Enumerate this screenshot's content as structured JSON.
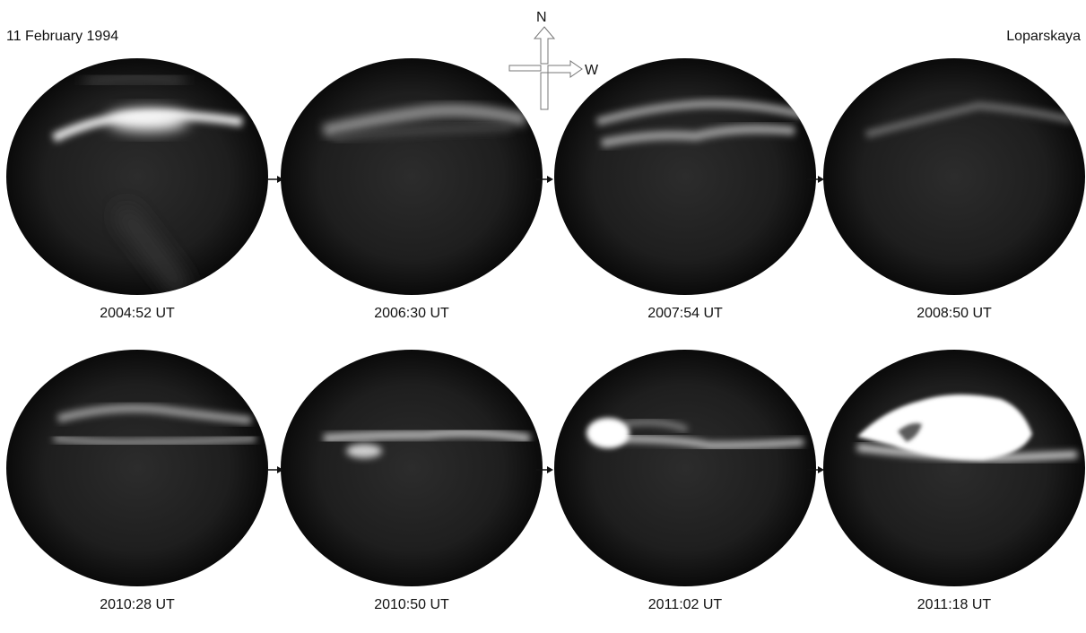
{
  "header": {
    "date": "11 February 1994",
    "station": "Loparskaya"
  },
  "compass": {
    "north": "N",
    "west": "W"
  },
  "frames": [
    {
      "time": "2004:52 UT"
    },
    {
      "time": "2006:30 UT"
    },
    {
      "time": "2007:54 UT"
    },
    {
      "time": "2008:50 UT"
    },
    {
      "time": "2010:28 UT"
    },
    {
      "time": "2010:50 UT"
    },
    {
      "time": "2011:02 UT"
    },
    {
      "time": "2011:18 UT"
    }
  ],
  "colors": {
    "sky_edge": "#0b0b0b",
    "sky_center": "#2e2e2e",
    "aurora": "#f0f0f0"
  }
}
